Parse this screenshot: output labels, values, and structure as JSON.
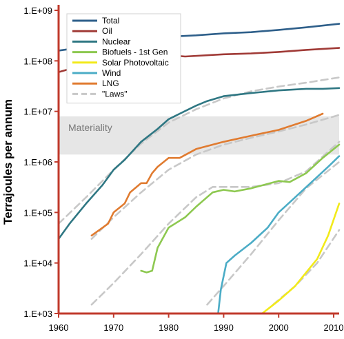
{
  "chart_data": {
    "type": "line",
    "title": "",
    "xlabel": "",
    "ylabel": "Terrajoules per annum",
    "x_ticks": [
      "1960",
      "1970",
      "1980",
      "1990",
      "2000",
      "2010"
    ],
    "y_ticks": [
      "1.E+03",
      "1.E+04",
      "1.E+05",
      "1.E+06",
      "1.E+07",
      "1.E+08",
      "1.E+09"
    ],
    "xlim": [
      1960,
      2011
    ],
    "ylim": [
      1000,
      1000000000
    ],
    "log_y": true,
    "grid": false,
    "legend_position": "top-left",
    "band": {
      "label": "Materiality",
      "low": 1400000,
      "high": 8000000,
      "color": "#e6e6e6"
    },
    "series": [
      {
        "name": "Total",
        "color": "#2e5f8a",
        "dashed": false,
        "x": [
          1960,
          1965,
          1970,
          1975,
          1980,
          1985,
          1990,
          1995,
          2000,
          2005,
          2011
        ],
        "y": [
          160000000,
          190000000,
          240000000,
          270000000,
          300000000,
          320000000,
          350000000,
          370000000,
          410000000,
          460000000,
          540000000
        ]
      },
      {
        "name": "Oil",
        "color": "#a03a36",
        "dashed": false,
        "x": [
          1960,
          1965,
          1970,
          1973,
          1975,
          1980,
          1983,
          1990,
          1995,
          2000,
          2005,
          2011
        ],
        "y": [
          60000000,
          85000000,
          120000000,
          135000000,
          128000000,
          130000000,
          122000000,
          135000000,
          140000000,
          150000000,
          165000000,
          180000000
        ]
      },
      {
        "name": "Nuclear",
        "color": "#2f7783",
        "dashed": false,
        "x": [
          1960,
          1962,
          1965,
          1968,
          1970,
          1972,
          1975,
          1978,
          1980,
          1985,
          1987,
          1990,
          1995,
          2000,
          2005,
          2008,
          2011
        ],
        "y": [
          30000,
          60000,
          150000,
          350000,
          700000,
          1100000,
          2500000,
          4500000,
          7000000,
          13000000,
          16000000,
          20000000,
          23000000,
          26000000,
          28000000,
          28000000,
          29000000
        ]
      },
      {
        "name": "Biofuels - 1st Gen",
        "color": "#8dc850",
        "dashed": false,
        "x": [
          1975,
          1976,
          1977,
          1978,
          1980,
          1983,
          1985,
          1988,
          1990,
          1992,
          1995,
          2000,
          2002,
          2005,
          2008,
          2011
        ],
        "y": [
          7000,
          6500,
          7000,
          20000,
          50000,
          80000,
          130000,
          250000,
          280000,
          260000,
          300000,
          420000,
          400000,
          600000,
          1200000,
          2200000
        ]
      },
      {
        "name": "Solar Photovoltaic",
        "color": "#f2ea1a",
        "dashed": false,
        "x": [
          1997,
          2000,
          2003,
          2005,
          2007,
          2009,
          2011
        ],
        "y": [
          1000,
          1800,
          3500,
          6500,
          12000,
          35000,
          150000
        ]
      },
      {
        "name": "Wind",
        "color": "#4bacc6",
        "dashed": false,
        "x": [
          1989,
          1989.5,
          1990.5,
          1992,
          1995,
          1998,
          2000,
          2003,
          2006,
          2009,
          2011
        ],
        "y": [
          1000,
          3000,
          10000,
          14000,
          25000,
          50000,
          100000,
          200000,
          400000,
          800000,
          1300000
        ]
      },
      {
        "name": "LNG",
        "color": "#e07b30",
        "dashed": false,
        "x": [
          1966,
          1968,
          1969,
          1970,
          1972,
          1973,
          1975,
          1976,
          1977,
          1978,
          1980,
          1982,
          1985,
          1990,
          1995,
          2000,
          2005,
          2008
        ],
        "y": [
          35000,
          50000,
          60000,
          100000,
          150000,
          250000,
          380000,
          380000,
          600000,
          800000,
          1200000,
          1200000,
          1800000,
          2500000,
          3300000,
          4300000,
          6500000,
          9000000
        ]
      },
      {
        "name": "\"Laws\"",
        "color": "#c8c8c8",
        "dashed": true,
        "x": [
          1960,
          1965,
          1970,
          1975,
          1980,
          1985,
          1990,
          1995,
          2000,
          2005,
          2011
        ],
        "y": [
          60000,
          200000,
          700000,
          2300000,
          6000000,
          11000000,
          18000000,
          25000000,
          31000000,
          37000000,
          47000000
        ]
      },
      {
        "name": "",
        "color": "#c8c8c8",
        "dashed": true,
        "x": [
          1966,
          1970,
          1975,
          1980,
          1985,
          1990,
          1995,
          2000,
          2005,
          2011
        ],
        "y": [
          30000,
          80000,
          250000,
          700000,
          1400000,
          2200000,
          3000000,
          4000000,
          5500000,
          8500000
        ]
      },
      {
        "name": "",
        "color": "#c8c8c8",
        "dashed": true,
        "x": [
          1966,
          1970,
          1975,
          1980,
          1985,
          1988,
          1995,
          2000,
          2005,
          2011
        ],
        "y": [
          1500,
          4000,
          15000,
          60000,
          200000,
          320000,
          320000,
          380000,
          650000,
          2500000
        ]
      },
      {
        "name": "",
        "color": "#c8c8c8",
        "dashed": true,
        "x": [
          1987,
          1990,
          1995,
          2000,
          2005,
          2011
        ],
        "y": [
          1500,
          3500,
          15000,
          70000,
          300000,
          1000000
        ]
      },
      {
        "name": "",
        "color": "#c8c8c8",
        "dashed": true,
        "x": [
          1999,
          2003,
          2007,
          2011
        ],
        "y": [
          1500,
          3500,
          10000,
          45000
        ]
      }
    ]
  }
}
